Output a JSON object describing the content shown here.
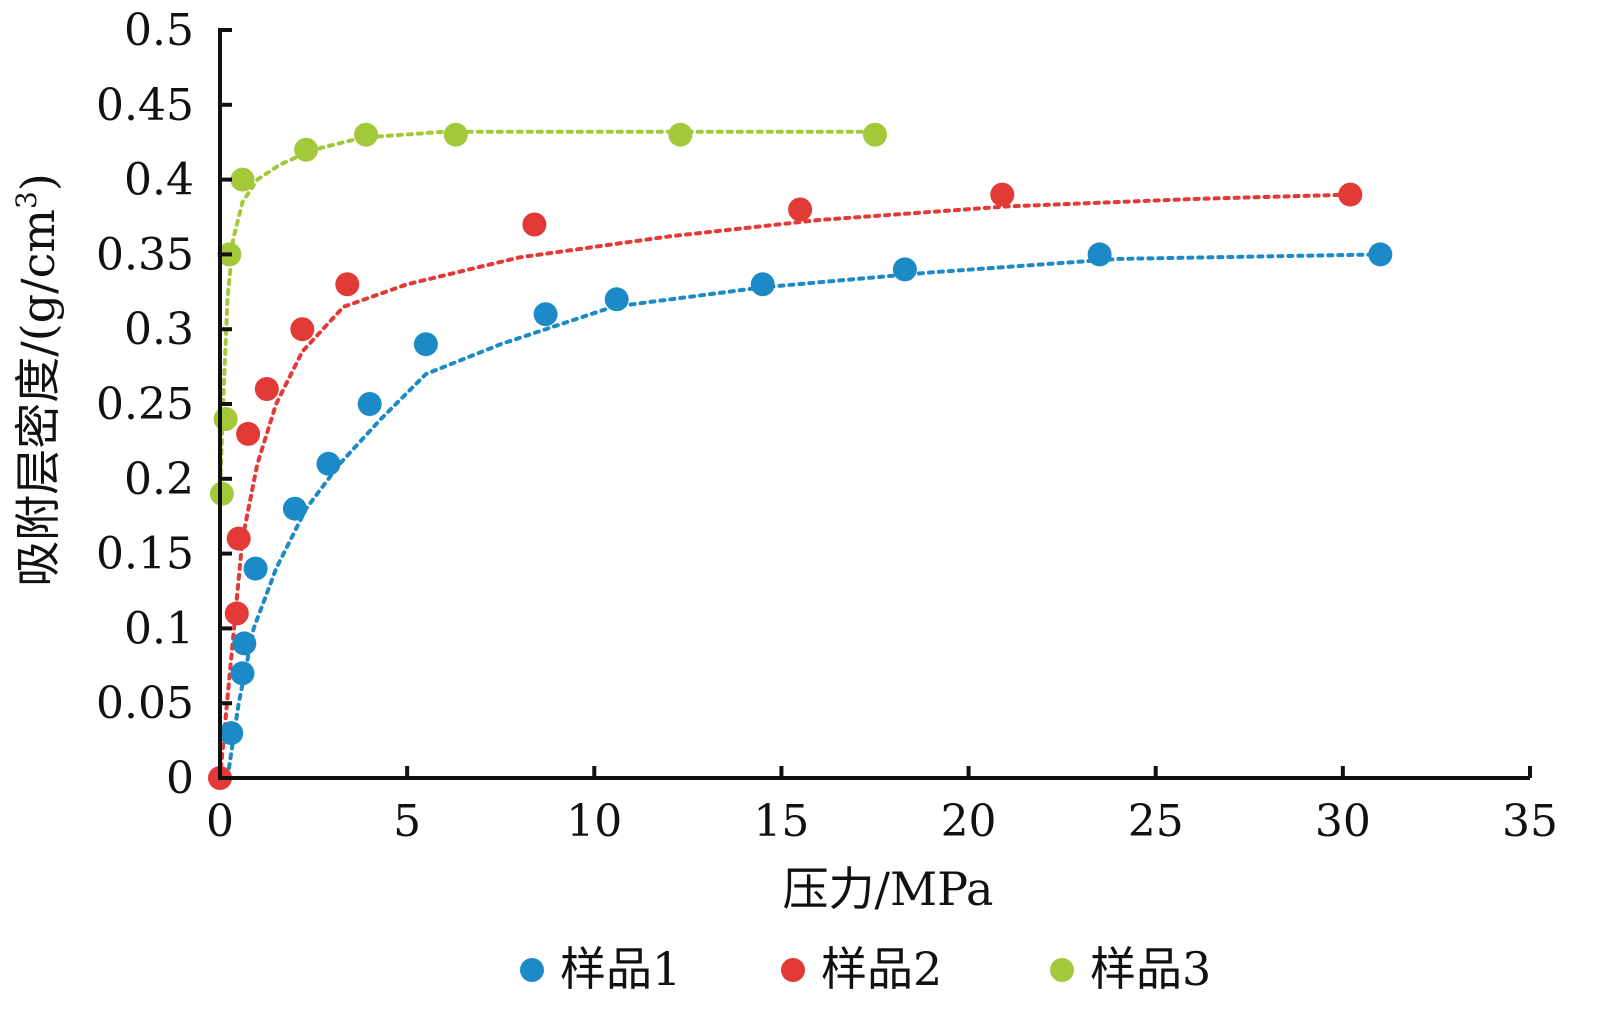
{
  "chart_data": {
    "type": "scatter",
    "xlabel": "压力/MPa",
    "ylabel": "吸附层密度/(g/cm",
    "ylabel_sup": "3",
    "ylabel_close": ")",
    "xlim": [
      0,
      35
    ],
    "ylim": [
      0,
      0.5
    ],
    "xticks": [
      "0",
      "5",
      "10",
      "15",
      "20",
      "25",
      "30",
      "35"
    ],
    "yticks": [
      "0",
      "0.05",
      "0.1",
      "0.15",
      "0.2",
      "0.25",
      "0.3",
      "0.35",
      "0.4",
      "0.45",
      "0.5"
    ],
    "grid": false,
    "legend_position": "bottom",
    "trendline_style": "dotted",
    "series": [
      {
        "name": "样品1",
        "color": "#1b8ac6",
        "points": [
          [
            0.3,
            0.03
          ],
          [
            0.6,
            0.07
          ],
          [
            0.65,
            0.09
          ],
          [
            0.95,
            0.14
          ],
          [
            2.0,
            0.18
          ],
          [
            2.9,
            0.21
          ],
          [
            4.0,
            0.25
          ],
          [
            5.5,
            0.29
          ],
          [
            8.7,
            0.31
          ],
          [
            10.6,
            0.32
          ],
          [
            14.5,
            0.33
          ],
          [
            18.3,
            0.34
          ],
          [
            23.5,
            0.35
          ],
          [
            31.0,
            0.35
          ]
        ],
        "trend": [
          [
            0.2,
            0.0
          ],
          [
            0.5,
            0.05
          ],
          [
            0.9,
            0.1
          ],
          [
            1.5,
            0.14
          ],
          [
            2.3,
            0.18
          ],
          [
            3.2,
            0.21
          ],
          [
            4.3,
            0.24
          ],
          [
            5.5,
            0.27
          ],
          [
            7.5,
            0.29
          ],
          [
            10.5,
            0.315
          ],
          [
            14.5,
            0.328
          ],
          [
            19.0,
            0.338
          ],
          [
            24.0,
            0.347
          ],
          [
            31.0,
            0.35
          ]
        ]
      },
      {
        "name": "样品2",
        "color": "#e23a36",
        "points": [
          [
            0.0,
            0.0
          ],
          [
            0.45,
            0.11
          ],
          [
            0.5,
            0.16
          ],
          [
            0.75,
            0.23
          ],
          [
            1.25,
            0.26
          ],
          [
            2.2,
            0.3
          ],
          [
            3.4,
            0.33
          ],
          [
            8.4,
            0.37
          ],
          [
            15.5,
            0.38
          ],
          [
            20.9,
            0.39
          ],
          [
            30.2,
            0.39
          ]
        ],
        "trend": [
          [
            0.0,
            0.0
          ],
          [
            0.3,
            0.08
          ],
          [
            0.6,
            0.16
          ],
          [
            1.0,
            0.21
          ],
          [
            1.5,
            0.25
          ],
          [
            2.2,
            0.285
          ],
          [
            3.3,
            0.315
          ],
          [
            5.0,
            0.33
          ],
          [
            8.0,
            0.348
          ],
          [
            12.0,
            0.362
          ],
          [
            16.0,
            0.373
          ],
          [
            21.0,
            0.382
          ],
          [
            26.0,
            0.387
          ],
          [
            30.2,
            0.39
          ]
        ]
      },
      {
        "name": "样品3",
        "color": "#a3c93a",
        "points": [
          [
            0.05,
            0.19
          ],
          [
            0.15,
            0.24
          ],
          [
            0.25,
            0.35
          ],
          [
            0.6,
            0.4
          ],
          [
            2.3,
            0.42
          ],
          [
            3.9,
            0.43
          ],
          [
            6.3,
            0.43
          ],
          [
            12.3,
            0.43
          ],
          [
            17.5,
            0.43
          ]
        ],
        "trend": [
          [
            0.0,
            0.19
          ],
          [
            0.1,
            0.26
          ],
          [
            0.2,
            0.32
          ],
          [
            0.35,
            0.36
          ],
          [
            0.6,
            0.385
          ],
          [
            1.0,
            0.4
          ],
          [
            1.6,
            0.41
          ],
          [
            2.5,
            0.42
          ],
          [
            3.8,
            0.428
          ],
          [
            6.0,
            0.432
          ],
          [
            10.0,
            0.432
          ],
          [
            14.0,
            0.432
          ],
          [
            17.5,
            0.432
          ]
        ]
      }
    ]
  }
}
